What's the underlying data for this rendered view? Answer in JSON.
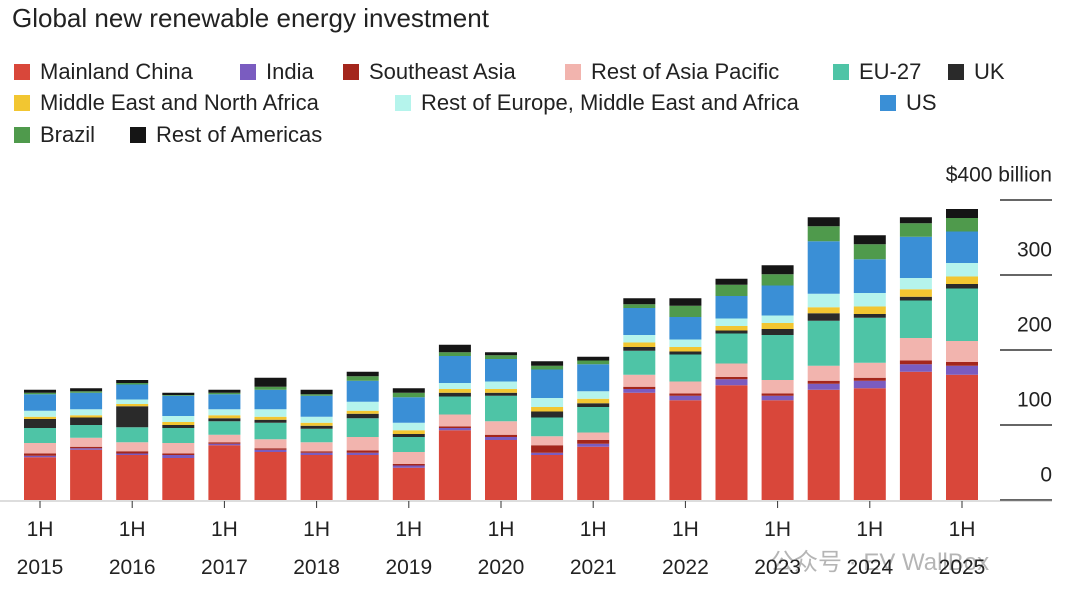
{
  "chart_data": {
    "type": "stacked_bar",
    "title": "Global new renewable energy investment",
    "watermark": "公众号 · EV WallBox",
    "categories": [
      "1H 2015",
      null,
      "1H 2016",
      null,
      "1H 2017",
      null,
      "1H 2018",
      null,
      "1H 2019",
      null,
      "1H 2020",
      null,
      "1H 2021",
      null,
      "1H 2022",
      null,
      "1H 2023",
      null,
      "1H 2024",
      null,
      "1H 2025"
    ],
    "ylim": [
      0,
      400
    ],
    "yticks": [
      0,
      100,
      200,
      300,
      {
        "value": 400,
        "label": "$400 billion"
      }
    ],
    "series": [
      {
        "name": "Mainland China",
        "color": "#d9473a",
        "values": [
          57,
          67,
          60,
          56,
          73,
          64,
          60,
          60,
          43,
          93,
          80,
          60,
          71,
          143,
          133,
          153,
          133,
          147,
          149,
          171,
          167
        ]
      },
      {
        "name": "India",
        "color": "#7a5cc0",
        "values": [
          2,
          2,
          2,
          4,
          2,
          3,
          3,
          3,
          3,
          3,
          4,
          3,
          4,
          5,
          6,
          8,
          6,
          8,
          10,
          10,
          12
        ]
      },
      {
        "name": "Southeast Asia",
        "color": "#a4261c",
        "values": [
          3,
          2,
          3,
          2,
          2,
          2,
          2,
          3,
          2,
          2,
          3,
          10,
          5,
          3,
          3,
          3,
          3,
          4,
          4,
          5,
          5
        ]
      },
      {
        "name": "Rest of Asia Pacific",
        "color": "#f2b4ae",
        "values": [
          14,
          12,
          12,
          14,
          10,
          12,
          12,
          18,
          16,
          16,
          18,
          12,
          10,
          16,
          16,
          18,
          18,
          20,
          20,
          30,
          28
        ]
      },
      {
        "name": "EU-27",
        "color": "#4ec4a6",
        "values": [
          20,
          17,
          20,
          20,
          18,
          22,
          18,
          25,
          20,
          24,
          34,
          25,
          34,
          32,
          36,
          40,
          60,
          60,
          60,
          50,
          70
        ]
      },
      {
        "name": "UK",
        "color": "#2a2a2a",
        "values": [
          12,
          10,
          28,
          4,
          4,
          4,
          4,
          6,
          4,
          5,
          4,
          8,
          5,
          5,
          4,
          4,
          8,
          10,
          5,
          5,
          6
        ]
      },
      {
        "name": "Middle East and North Africa",
        "color": "#f2c631",
        "values": [
          3,
          3,
          3,
          4,
          4,
          4,
          4,
          4,
          5,
          5,
          5,
          6,
          6,
          6,
          6,
          6,
          8,
          8,
          10,
          10,
          10
        ]
      },
      {
        "name": "Rest of Europe, Middle East and Africa",
        "color": "#b5f4ec",
        "values": [
          8,
          8,
          6,
          8,
          8,
          10,
          8,
          12,
          10,
          8,
          10,
          12,
          10,
          10,
          10,
          10,
          10,
          18,
          18,
          15,
          18
        ]
      },
      {
        "name": "US",
        "color": "#3a8fd6",
        "values": [
          22,
          22,
          20,
          27,
          20,
          26,
          28,
          28,
          34,
          36,
          30,
          38,
          36,
          36,
          30,
          30,
          40,
          70,
          45,
          55,
          42
        ]
      },
      {
        "name": "Brazil",
        "color": "#4f9a4c",
        "values": [
          2,
          2,
          2,
          1,
          2,
          4,
          2,
          6,
          6,
          5,
          5,
          5,
          5,
          5,
          15,
          15,
          15,
          20,
          20,
          18,
          18
        ]
      },
      {
        "name": "Rest of Americas",
        "color": "#151515",
        "values": [
          4,
          4,
          4,
          3,
          4,
          12,
          6,
          6,
          6,
          10,
          4,
          6,
          5,
          8,
          10,
          8,
          12,
          12,
          12,
          8,
          12
        ]
      }
    ]
  }
}
